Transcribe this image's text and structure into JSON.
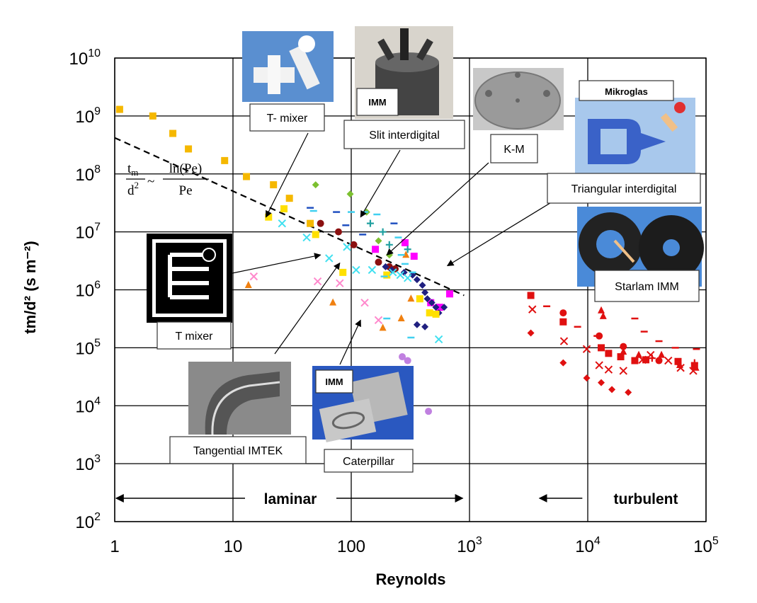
{
  "chart_data": {
    "type": "scatter",
    "xlabel": "Reynolds",
    "ylabel": "tm/d² (s m⁻²)",
    "x_scale": "log",
    "y_scale": "log",
    "xlim": [
      1,
      100000
    ],
    "ylim": [
      100,
      10000000000
    ],
    "grid": true,
    "x_ticks": [
      {
        "base": "1",
        "exp": ""
      },
      {
        "base": "10",
        "exp": ""
      },
      {
        "base": "100",
        "exp": ""
      },
      {
        "base": "10",
        "exp": "3"
      },
      {
        "base": "10",
        "exp": "4"
      },
      {
        "base": "10",
        "exp": "5"
      }
    ],
    "y_ticks": [
      {
        "base": "10",
        "exp": "2"
      },
      {
        "base": "10",
        "exp": "3"
      },
      {
        "base": "10",
        "exp": "4"
      },
      {
        "base": "10",
        "exp": "5"
      },
      {
        "base": "10",
        "exp": "6"
      },
      {
        "base": "10",
        "exp": "7"
      },
      {
        "base": "10",
        "exp": "8"
      },
      {
        "base": "10",
        "exp": "9"
      },
      {
        "base": "10",
        "exp": "10"
      }
    ],
    "formula": {
      "lhs_num": "t",
      "lhs_sub": "m",
      "lhs_den": "d",
      "lhs_den_exp": "2",
      "rel": "~",
      "rhs_num": "ln(Pe)",
      "rhs_den": "Pe"
    },
    "trend_line": {
      "x": [
        1,
        900
      ],
      "y": [
        420000000,
        800000
      ]
    },
    "regimes": [
      {
        "label": "laminar",
        "arrow_from": 1,
        "arrow_to": 900
      },
      {
        "label": "turbulent",
        "arrow_from": 3500,
        "arrow_to": 9000
      }
    ],
    "callouts": [
      {
        "label": "T- mixer",
        "target": [
          19,
          18000000
        ]
      },
      {
        "label": "Slit interdigital",
        "tag": "IMM",
        "target": [
          120,
          18000000
        ]
      },
      {
        "label": "K-M",
        "target": [
          200,
          4000000
        ]
      },
      {
        "label": "Triangular interdigital",
        "target": [
          650,
          2600000
        ]
      },
      {
        "label": "Mikroglas",
        "target": null
      },
      {
        "label": "Starlam IMM",
        "target": null
      },
      {
        "label": "T mixer",
        "target": [
          55,
          4000000
        ]
      },
      {
        "label": "Tangential IMTEK",
        "target": [
          80,
          2900000
        ]
      },
      {
        "label": "Caterpillar",
        "tag": "IMM",
        "target": [
          120,
          300000
        ]
      }
    ],
    "series": [
      {
        "marker": "square",
        "color": "#f5b800",
        "x": [
          1.1,
          2.1,
          3.1,
          4.2,
          8.5,
          13,
          22,
          30,
          45
        ],
        "y": [
          1300000000,
          1000000000,
          500000000,
          270000000,
          170000000,
          90000000,
          65000000,
          38000000,
          14000000
        ]
      },
      {
        "marker": "triangle",
        "color": "#f08010",
        "x": [
          13.5,
          70,
          185,
          265,
          290,
          320
        ],
        "y": [
          1200000,
          600000,
          220000,
          320000,
          4000000,
          700000
        ]
      },
      {
        "marker": "diamond",
        "color": "#7cc030",
        "x": [
          50,
          98,
          135,
          170,
          210
        ],
        "y": [
          65000000,
          45000000,
          22000000,
          7000000,
          4000000
        ]
      },
      {
        "marker": "circle",
        "color": "#8b1010",
        "x": [
          55,
          78,
          105,
          170,
          210,
          235
        ],
        "y": [
          14000000,
          10000000,
          6000000,
          3000000,
          2500000,
          2300000
        ]
      },
      {
        "marker": "square",
        "color": "#ff00ff",
        "x": [
          160,
          285,
          340,
          470,
          560,
          680
        ],
        "y": [
          5000000,
          6500000,
          3800000,
          600000,
          500000,
          850000
        ]
      },
      {
        "marker": "diamond",
        "color": "#202080",
        "x": [
          195,
          220,
          280,
          330,
          360,
          400,
          420,
          440,
          480,
          520,
          550,
          610,
          360,
          420
        ],
        "y": [
          2500000,
          2200000,
          2000000,
          1800000,
          1500000,
          1200000,
          900000,
          700000,
          600000,
          500000,
          400000,
          500000,
          250000,
          230000
        ]
      },
      {
        "marker": "square",
        "color": "#ffe000",
        "x": [
          20,
          27,
          50,
          85,
          200,
          380,
          460,
          520
        ],
        "y": [
          18000000,
          25000000,
          9000000,
          2000000,
          1800000,
          700000,
          400000,
          380000
        ]
      },
      {
        "marker": "x",
        "color": "#40e0f0",
        "x": [
          26,
          42,
          65,
          92,
          110,
          150,
          225,
          260,
          300,
          550
        ],
        "y": [
          14000000,
          8000000,
          3500000,
          5500000,
          2200000,
          2200000,
          2000000,
          1800000,
          1600000,
          140000
        ]
      },
      {
        "marker": "dash",
        "color": "#40d0f0",
        "x": [
          48,
          100,
          130,
          165,
          250,
          265,
          285,
          330,
          190,
          200,
          320
        ],
        "y": [
          23000000,
          22000000,
          22000000,
          20000000,
          8000000,
          4000000,
          2800000,
          2000000,
          1700000,
          320000,
          150000
        ]
      },
      {
        "marker": "plus",
        "color": "#20a0a0",
        "x": [
          145,
          185,
          210,
          300
        ],
        "y": [
          14000000,
          10000000,
          6000000,
          5000000
        ]
      },
      {
        "marker": "dash",
        "color": "#2050c0",
        "x": [
          45,
          75,
          90,
          125,
          230
        ],
        "y": [
          26000000,
          22000000,
          13000000,
          9000000,
          14000000
        ]
      },
      {
        "marker": "x",
        "color": "#ff88cc",
        "x": [
          15,
          52,
          80,
          130,
          170
        ],
        "y": [
          1700000,
          1400000,
          1300000,
          600000,
          300000
        ]
      },
      {
        "marker": "circle",
        "color": "#c080e0",
        "x": [
          270,
          300,
          450
        ],
        "y": [
          70000,
          60000,
          8000
        ]
      },
      {
        "marker": "square",
        "color": "#e01010",
        "x": [
          3300,
          6200,
          13000,
          15000,
          19000,
          25000,
          31000,
          58000,
          80000
        ],
        "y": [
          800000,
          280000,
          100000,
          80000,
          70000,
          60000,
          62000,
          58000,
          48000
        ]
      },
      {
        "marker": "x",
        "color": "#e01010",
        "x": [
          3400,
          6300,
          9800,
          12500,
          15000,
          20000,
          29000,
          34000,
          48000,
          61000,
          78000
        ],
        "y": [
          460000,
          130000,
          95000,
          50000,
          42000,
          40000,
          62000,
          75000,
          60000,
          45000,
          40000
        ]
      },
      {
        "marker": "circle",
        "color": "#e01010",
        "x": [
          6200,
          12500,
          20000,
          40000
        ],
        "y": [
          400000,
          160000,
          105000,
          60000
        ]
      },
      {
        "marker": "diamond",
        "color": "#e01010",
        "x": [
          3300,
          6200,
          9800,
          13000,
          16000,
          22000
        ],
        "y": [
          180000,
          55000,
          30000,
          25000,
          19000,
          17000
        ]
      },
      {
        "marker": "triangle",
        "color": "#e01010",
        "x": [
          13000,
          13500,
          20000,
          27000,
          42000,
          60000,
          82000
        ],
        "y": [
          440000,
          350000,
          85000,
          75000,
          75000,
          50000,
          45000
        ]
      },
      {
        "marker": "dash",
        "color": "#e01010",
        "x": [
          4500,
          8200,
          12000,
          25000,
          30000,
          40000,
          55000,
          83000
        ],
        "y": [
          520000,
          230000,
          160000,
          320000,
          190000,
          130000,
          100000,
          95000
        ]
      },
      {
        "marker": "plus",
        "color": "#e01010",
        "x": [
          35000,
          80000
        ],
        "y": [
          66000,
          55000
        ]
      }
    ]
  }
}
